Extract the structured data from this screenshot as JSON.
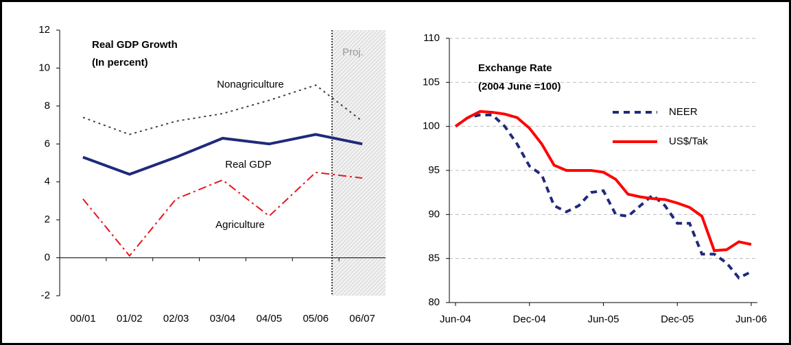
{
  "chart_data": [
    {
      "type": "line",
      "title": "Real GDP Growth",
      "subtitle": "(In percent)",
      "categories": [
        "00/01",
        "01/02",
        "02/03",
        "03/04",
        "04/05",
        "05/06",
        "06/07"
      ],
      "series": [
        {
          "name": "Nonagriculture",
          "color": "#404040",
          "line_style": "dotted",
          "values": [
            7.4,
            6.5,
            7.2,
            7.6,
            8.3,
            9.1,
            7.2
          ]
        },
        {
          "name": "Real GDP",
          "color": "#1f2a7a",
          "line_style": "solid",
          "values": [
            5.3,
            4.4,
            5.3,
            6.3,
            6.0,
            6.5,
            6.0
          ]
        },
        {
          "name": "Agriculture",
          "color": "#e8141c",
          "line_style": "dashdot",
          "values": [
            3.1,
            0.1,
            3.1,
            4.1,
            2.2,
            4.5,
            4.2
          ]
        }
      ],
      "annotations": [
        "Proj."
      ],
      "ylim": [
        -2,
        12
      ],
      "yticks": [
        -2,
        0,
        2,
        4,
        6,
        8,
        10,
        12
      ],
      "grid": false
    },
    {
      "type": "line",
      "title": "Exchange Rate",
      "subtitle": "(2004 June =100)",
      "categories": [
        "Jun-04",
        null,
        null,
        null,
        null,
        null,
        "Dec-04",
        null,
        null,
        null,
        null,
        null,
        "Jun-05",
        null,
        null,
        null,
        null,
        null,
        "Dec-05",
        null,
        null,
        null,
        null,
        null,
        "Jun-06"
      ],
      "series": [
        {
          "name": "NEER",
          "color": "#1f2a7a",
          "line_style": "dashed",
          "values": [
            100,
            101,
            101.3,
            101.3,
            100,
            98,
            95.5,
            94.5,
            91,
            90.3,
            91,
            92.5,
            92.7,
            90,
            89.8,
            91,
            92.2,
            91,
            89,
            89,
            85.5,
            85.5,
            84.5,
            82.8,
            83.5
          ]
        },
        {
          "name": "US$/Tak",
          "color": "#ff0000",
          "line_style": "solid",
          "values": [
            100,
            101,
            101.7,
            101.6,
            101.4,
            101,
            99.8,
            98,
            95.6,
            95,
            95,
            95,
            94.8,
            94,
            92.3,
            92,
            91.8,
            91.7,
            91.3,
            90.8,
            89.8,
            85.9,
            86,
            86.9,
            86.6
          ]
        }
      ],
      "ylim": [
        80,
        110
      ],
      "yticks": [
        80,
        85,
        90,
        95,
        100,
        105,
        110
      ],
      "grid": true,
      "legend": "upper right"
    }
  ]
}
